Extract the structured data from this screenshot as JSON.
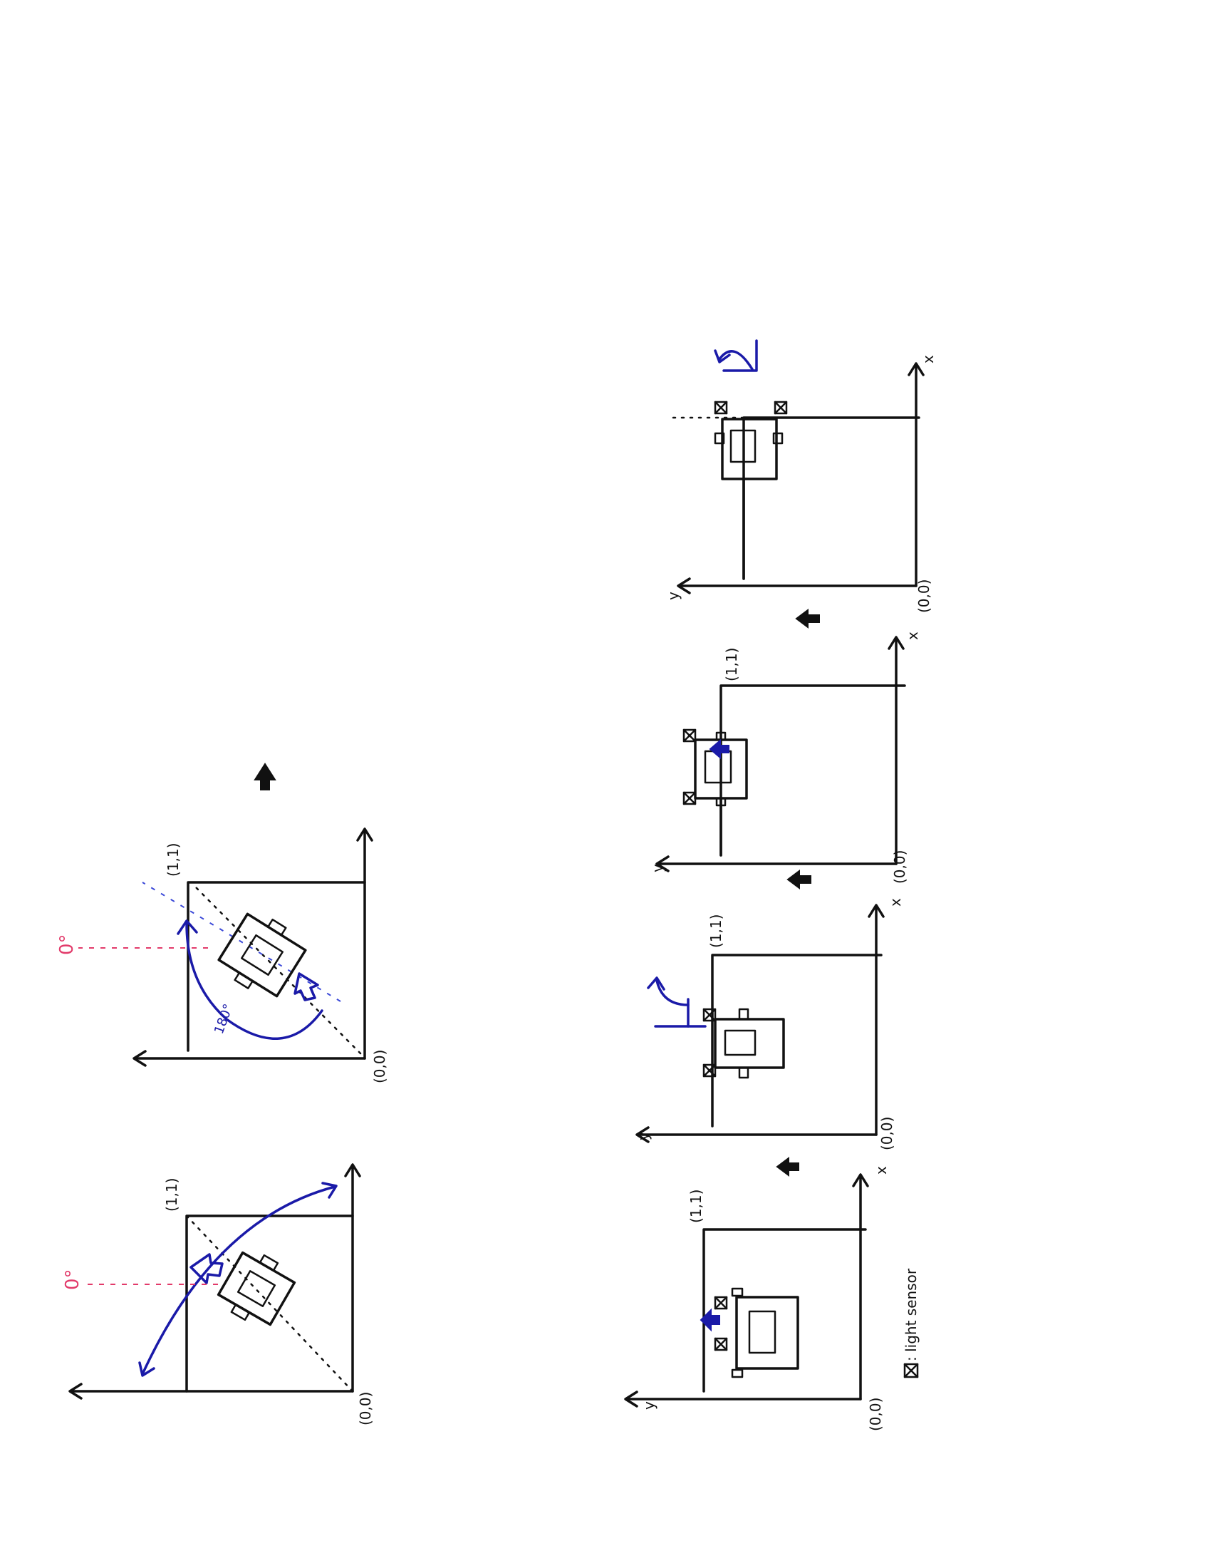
{
  "labels": {
    "origin": "(0,0)",
    "corner": "(1,1)",
    "axis_x": "x",
    "axis_y": "y",
    "zero_deg": "0°",
    "angle_180": "180°",
    "legend": ": light sensor"
  },
  "colors": {
    "ink": "#111111",
    "blue": "#1a1aa8",
    "red": "#e23a6a"
  },
  "icons": {
    "light_sensor": "boxed-x-icon",
    "step_arrow": "thick-arrow-icon"
  }
}
